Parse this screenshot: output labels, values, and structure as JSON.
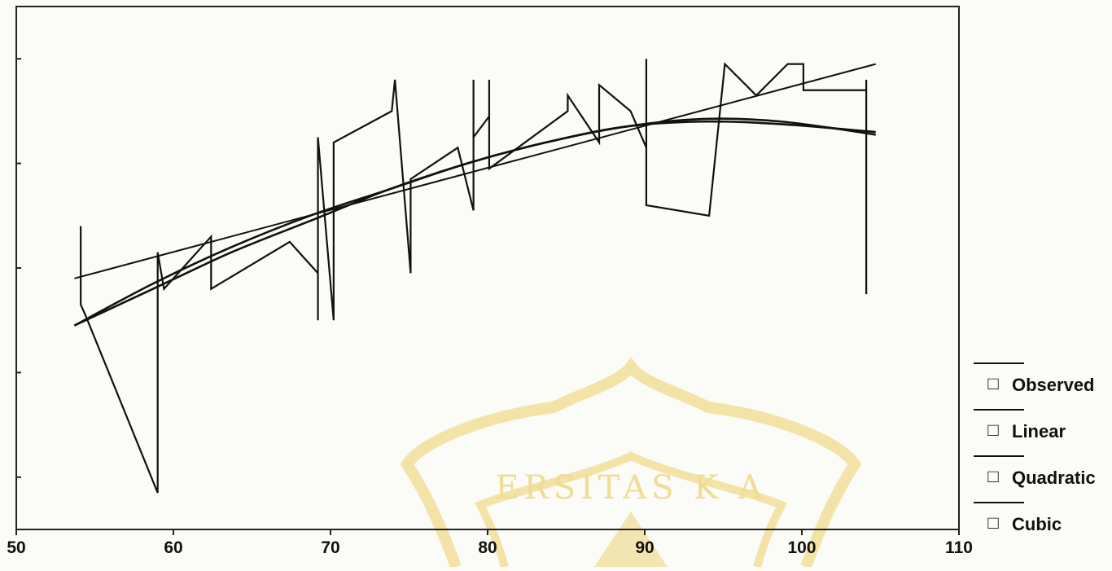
{
  "chart_data": {
    "type": "line",
    "title": "",
    "xlabel": "",
    "ylabel": "",
    "xlim": [
      50,
      110
    ],
    "ylim": [
      0,
      100
    ],
    "x_ticks": [
      50,
      60,
      70,
      80,
      90,
      100,
      110
    ],
    "x_tick_labels": [
      "50",
      "60",
      "70",
      "80",
      "90",
      "100",
      "110"
    ],
    "y_ticks": [
      10,
      30,
      50,
      70,
      90
    ],
    "y_tick_labels": [],
    "grid": false,
    "legend_position": "right",
    "series": [
      {
        "name": "Observed",
        "style": "polyline",
        "color": "#111111",
        "points": [
          [
            54.1,
            58
          ],
          [
            54.1,
            43
          ],
          [
            54.4,
            41
          ],
          [
            59.0,
            7
          ],
          [
            59.0,
            53
          ],
          [
            59.4,
            46
          ],
          [
            62.4,
            56
          ],
          [
            62.4,
            46
          ],
          [
            67.4,
            55
          ],
          [
            69.2,
            49
          ],
          [
            69.2,
            40
          ],
          [
            69.2,
            75
          ],
          [
            70.2,
            40
          ],
          [
            70.2,
            74
          ],
          [
            73.9,
            80
          ],
          [
            74.1,
            86
          ],
          [
            75.1,
            49
          ],
          [
            75.1,
            67
          ],
          [
            78.1,
            73
          ],
          [
            79.1,
            61
          ],
          [
            79.1,
            86
          ],
          [
            79.1,
            75
          ],
          [
            80.1,
            79
          ],
          [
            80.1,
            86
          ],
          [
            80.1,
            69
          ],
          [
            85.1,
            80
          ],
          [
            85.1,
            83
          ],
          [
            87.1,
            74
          ],
          [
            87.1,
            85
          ],
          [
            89.1,
            80
          ],
          [
            90.1,
            73
          ],
          [
            90.1,
            90
          ],
          [
            90.1,
            62
          ],
          [
            94.1,
            60
          ],
          [
            95.1,
            89
          ],
          [
            97.1,
            83
          ],
          [
            99.1,
            89
          ],
          [
            100.1,
            89
          ],
          [
            100.1,
            84
          ],
          [
            104.1,
            84
          ],
          [
            104.1,
            86
          ],
          [
            104.1,
            45
          ]
        ]
      },
      {
        "name": "Linear",
        "style": "line",
        "color": "#111111",
        "points": [
          [
            53.7,
            48
          ],
          [
            104.7,
            89
          ]
        ]
      },
      {
        "name": "Quadratic",
        "style": "curve",
        "color": "#111111",
        "points": [
          [
            53.7,
            39
          ],
          [
            58.7,
            47
          ],
          [
            63.7,
            54
          ],
          [
            68.7,
            60
          ],
          [
            73.7,
            65
          ],
          [
            78.7,
            70
          ],
          [
            83.7,
            74
          ],
          [
            88.7,
            77
          ],
          [
            93.7,
            78
          ],
          [
            98.7,
            77.5
          ],
          [
            104.7,
            76
          ]
        ]
      },
      {
        "name": "Cubic",
        "style": "curve",
        "color": "#111111",
        "points": [
          [
            53.7,
            39
          ],
          [
            58.7,
            46
          ],
          [
            63.7,
            53
          ],
          [
            68.7,
            59
          ],
          [
            73.7,
            65
          ],
          [
            78.7,
            70
          ],
          [
            83.7,
            74
          ],
          [
            88.7,
            77
          ],
          [
            93.7,
            78.5
          ],
          [
            98.7,
            78
          ],
          [
            104.7,
            75.5
          ]
        ]
      }
    ],
    "legend": {
      "entries": [
        "Observed",
        "Linear",
        "Quadratic",
        "Cubic"
      ],
      "marker": "□"
    }
  },
  "watermark": {
    "text": "ERSITAS  K A",
    "color": "#f0dc92"
  }
}
